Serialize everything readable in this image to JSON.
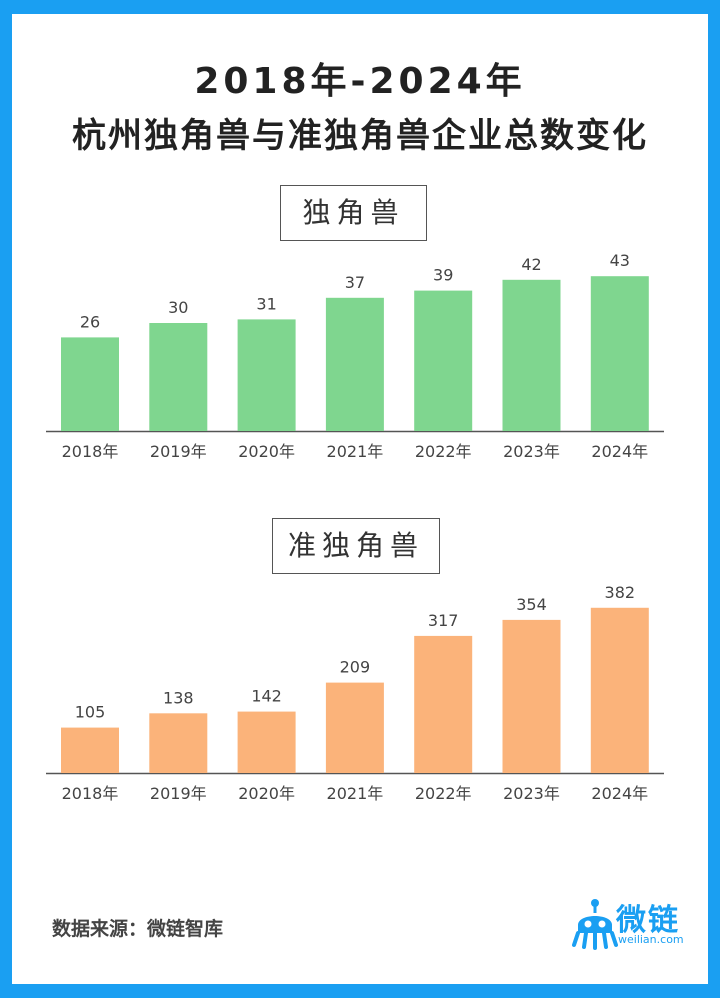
{
  "title_line1": "2018年-2024年",
  "title_line2": "杭州独角兽与准独角兽企业总数变化",
  "source": "数据来源：微链智库",
  "logo": {
    "name": "微链",
    "url": "weilian.com",
    "icon": "robot-mascot-icon"
  },
  "colors": {
    "border": "#1a9ff2",
    "green": "#7fd68f",
    "orange": "#fbb37a"
  },
  "chart_data": [
    {
      "type": "bar",
      "title": "独角兽",
      "categories": [
        "2018年",
        "2019年",
        "2020年",
        "2021年",
        "2022年",
        "2023年",
        "2024年"
      ],
      "values": [
        26,
        30,
        31,
        37,
        39,
        42,
        43
      ],
      "ylim": [
        0,
        45
      ],
      "color": "#7fd68f"
    },
    {
      "type": "bar",
      "title": "准独角兽",
      "categories": [
        "2018年",
        "2019年",
        "2020年",
        "2021年",
        "2022年",
        "2023年",
        "2024年"
      ],
      "values": [
        105,
        138,
        142,
        209,
        317,
        354,
        382
      ],
      "ylim": [
        0,
        400
      ],
      "color": "#fbb37a"
    }
  ]
}
